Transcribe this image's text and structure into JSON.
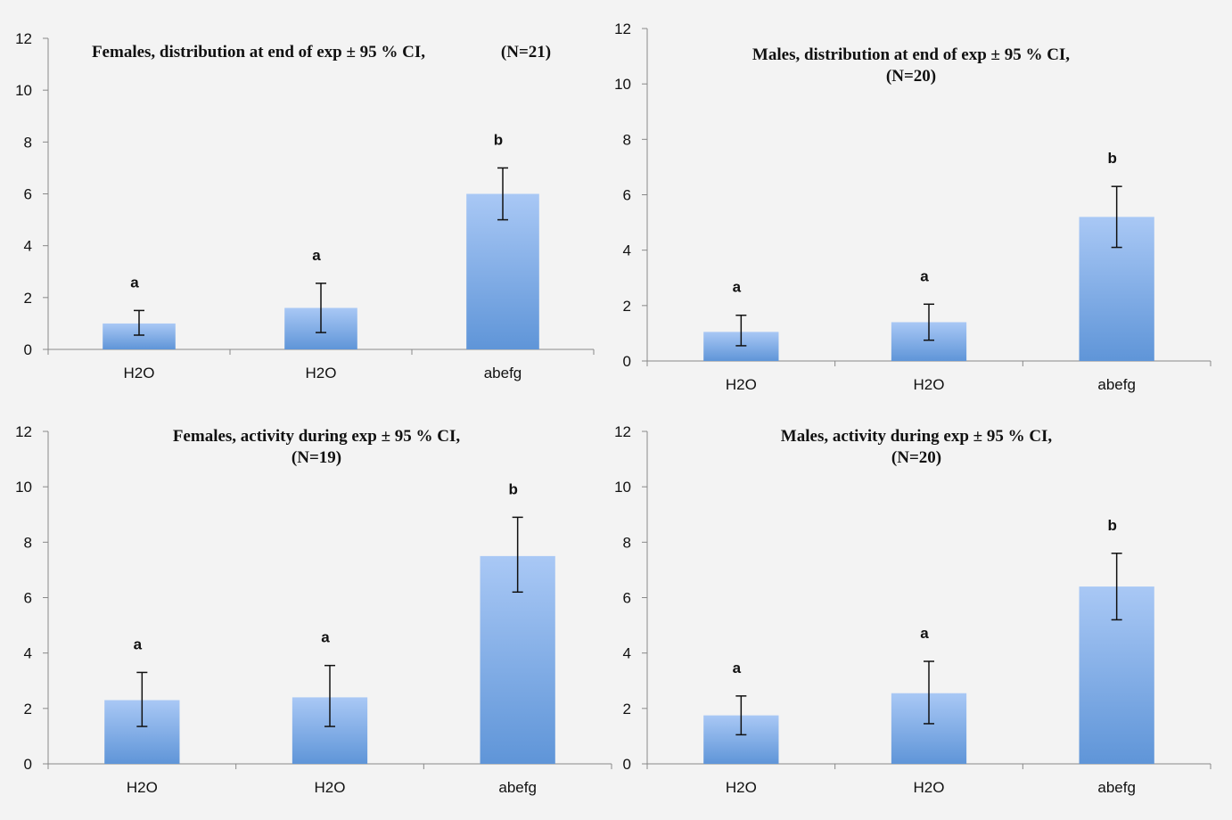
{
  "chart_data": [
    {
      "type": "bar",
      "title_lines": [
        "Females, distribution at end of exp ± 95 % CI,",
        "(N=21)"
      ],
      "categories": [
        "H2O",
        "H2O",
        "abefg"
      ],
      "values": [
        1.0,
        1.6,
        6.0
      ],
      "error_low": [
        0.55,
        0.65,
        5.0
      ],
      "error_high": [
        1.5,
        2.55,
        7.0
      ],
      "significance": [
        "a",
        "a",
        "b"
      ],
      "ylim": [
        0,
        12
      ],
      "yticks": [
        "0",
        "2",
        "4",
        "6",
        "8",
        "10",
        "12"
      ],
      "colors": {
        "bar_top": "#a9c8f5",
        "bar_bottom": "#5f95d8"
      }
    },
    {
      "type": "bar",
      "title_lines": [
        "Males, distribution at end of exp ± 95 % CI,",
        "(N=20)"
      ],
      "categories": [
        "H2O",
        "H2O",
        "abefg"
      ],
      "values": [
        1.05,
        1.4,
        5.2
      ],
      "error_low": [
        0.55,
        0.75,
        4.1
      ],
      "error_high": [
        1.65,
        2.05,
        6.3
      ],
      "significance": [
        "a",
        "a",
        "b"
      ],
      "ylim": [
        0,
        12
      ],
      "yticks": [
        "0",
        "2",
        "4",
        "6",
        "8",
        "10",
        "12"
      ],
      "colors": {
        "bar_top": "#a9c8f5",
        "bar_bottom": "#5f95d8"
      }
    },
    {
      "type": "bar",
      "title_lines": [
        "Females, activity during exp ± 95 % CI,",
        "(N=19)"
      ],
      "categories": [
        "H2O",
        "H2O",
        "abefg"
      ],
      "values": [
        2.3,
        2.4,
        7.5
      ],
      "error_low": [
        1.35,
        1.35,
        6.2
      ],
      "error_high": [
        3.3,
        3.55,
        8.9
      ],
      "significance": [
        "a",
        "a",
        "b"
      ],
      "ylim": [
        0,
        12
      ],
      "yticks": [
        "0",
        "2",
        "4",
        "6",
        "8",
        "10",
        "12"
      ],
      "colors": {
        "bar_top": "#a9c8f5",
        "bar_bottom": "#5f95d8"
      }
    },
    {
      "type": "bar",
      "title_lines": [
        "Males, activity during exp ± 95 % CI,",
        "(N=20)"
      ],
      "categories": [
        "H2O",
        "H2O",
        "abefg"
      ],
      "values": [
        1.75,
        2.55,
        6.4
      ],
      "error_low": [
        1.05,
        1.45,
        5.2
      ],
      "error_high": [
        2.45,
        3.7,
        7.6
      ],
      "significance": [
        "a",
        "a",
        "b"
      ],
      "ylim": [
        0,
        12
      ],
      "yticks": [
        "0",
        "2",
        "4",
        "6",
        "8",
        "10",
        "12"
      ],
      "colors": {
        "bar_top": "#a9c8f5",
        "bar_bottom": "#5f95d8"
      }
    }
  ]
}
